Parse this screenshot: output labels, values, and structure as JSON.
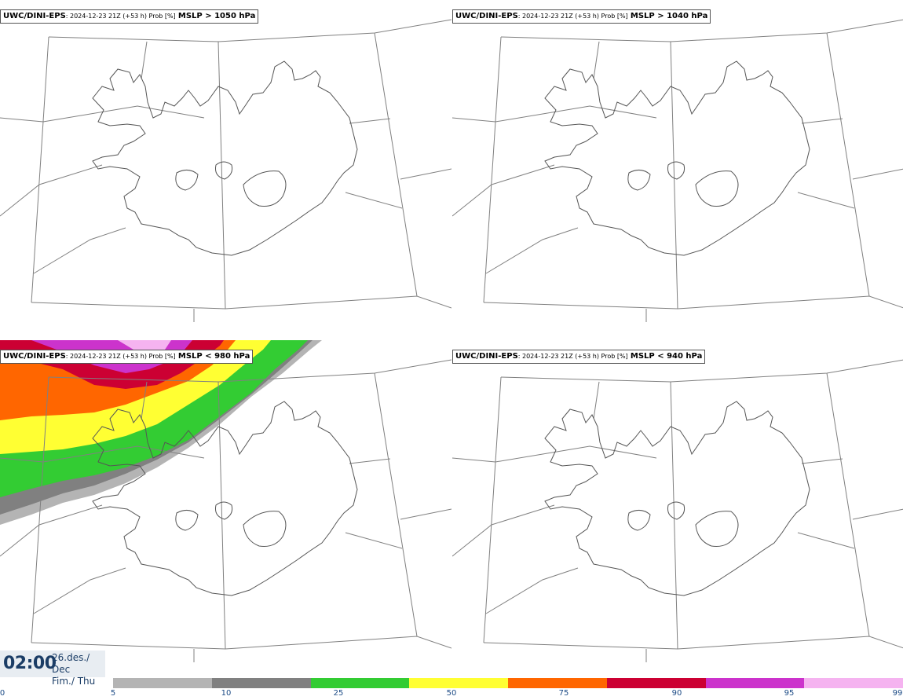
{
  "panels": [
    {
      "model": "UWC/DINI-EPS",
      "meta": ": 2024-12-23 21Z (+53 h) Prob [%]",
      "field": "MSLP > 1050 hPa",
      "has_fill": false
    },
    {
      "model": "UWC/DINI-EPS",
      "meta": ": 2024-12-23 21Z (+53 h) Prob [%]",
      "field": "MSLP > 1040 hPa",
      "has_fill": false
    },
    {
      "model": "UWC/DINI-EPS",
      "meta": ": 2024-12-23 21Z (+53 h) Prob [%]",
      "field": "MSLP < 980 hPa",
      "has_fill": true
    },
    {
      "model": "UWC/DINI-EPS",
      "meta": ": 2024-12-23 21Z (+53 h) Prob [%]",
      "field": "MSLP < 940 hPa",
      "has_fill": false
    }
  ],
  "time": {
    "clock": "02:00",
    "date_line1": "26.des./ Dec",
    "date_line2": "Fim./ Thu"
  },
  "colorbar": {
    "ticks": [
      "0",
      "5",
      "10",
      "25",
      "50",
      "75",
      "90",
      "95",
      "99"
    ],
    "colors": [
      "#b4b4b4",
      "#808080",
      "#33cc33",
      "#ffff33",
      "#ff6600",
      "#cc0033",
      "#cc33cc",
      "#f5b3f0"
    ]
  }
}
